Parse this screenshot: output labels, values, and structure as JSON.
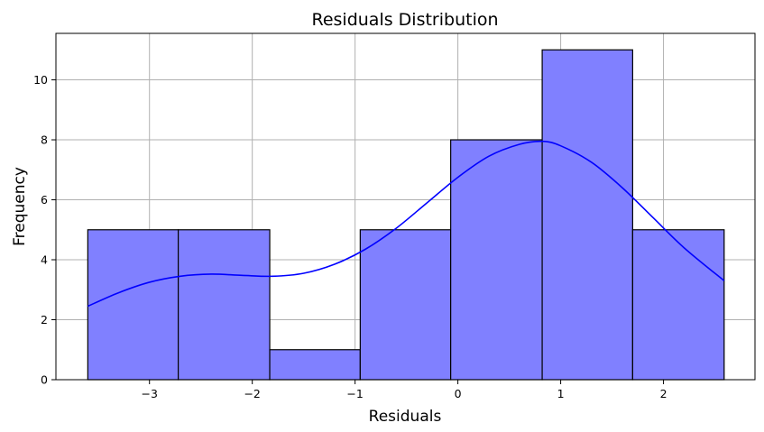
{
  "chart_data": {
    "type": "bar",
    "title": "Residuals Distribution",
    "xlabel": "Residuals",
    "ylabel": "Frequency",
    "xlim": [
      -3.91,
      2.89
    ],
    "ylim": [
      0,
      11.55
    ],
    "grid": true,
    "bar_color": "#8080ff",
    "bar_edge_color": "#000000",
    "kde_color": "#0000ff",
    "x_ticks": [
      -3,
      -2,
      -1,
      0,
      1,
      2
    ],
    "x_tick_labels": [
      "−3",
      "−2",
      "−1",
      "0",
      "1",
      "2"
    ],
    "y_ticks": [
      0,
      2,
      4,
      6,
      8,
      10
    ],
    "y_tick_labels": [
      "0",
      "2",
      "4",
      "6",
      "8",
      "10"
    ],
    "bins": [
      {
        "x0": -3.6,
        "x1": -2.72,
        "count": 5
      },
      {
        "x0": -2.72,
        "x1": -1.83,
        "count": 5
      },
      {
        "x0": -1.83,
        "x1": -0.95,
        "count": 1
      },
      {
        "x0": -0.95,
        "x1": -0.07,
        "count": 5
      },
      {
        "x0": -0.07,
        "x1": 0.82,
        "count": 8
      },
      {
        "x0": 0.82,
        "x1": 1.7,
        "count": 11
      },
      {
        "x0": 1.7,
        "x1": 2.59,
        "count": 5
      }
    ],
    "kde": {
      "x": [
        -3.6,
        -3.3,
        -3.0,
        -2.7,
        -2.4,
        -2.1,
        -1.8,
        -1.5,
        -1.2,
        -0.9,
        -0.6,
        -0.3,
        0.0,
        0.3,
        0.6,
        0.82,
        1.0,
        1.3,
        1.6,
        1.9,
        2.2,
        2.59
      ],
      "y": [
        2.45,
        2.9,
        3.25,
        3.45,
        3.52,
        3.48,
        3.45,
        3.55,
        3.85,
        4.35,
        5.05,
        5.9,
        6.75,
        7.45,
        7.85,
        7.95,
        7.8,
        7.25,
        6.4,
        5.4,
        4.4,
        3.3
      ]
    }
  }
}
